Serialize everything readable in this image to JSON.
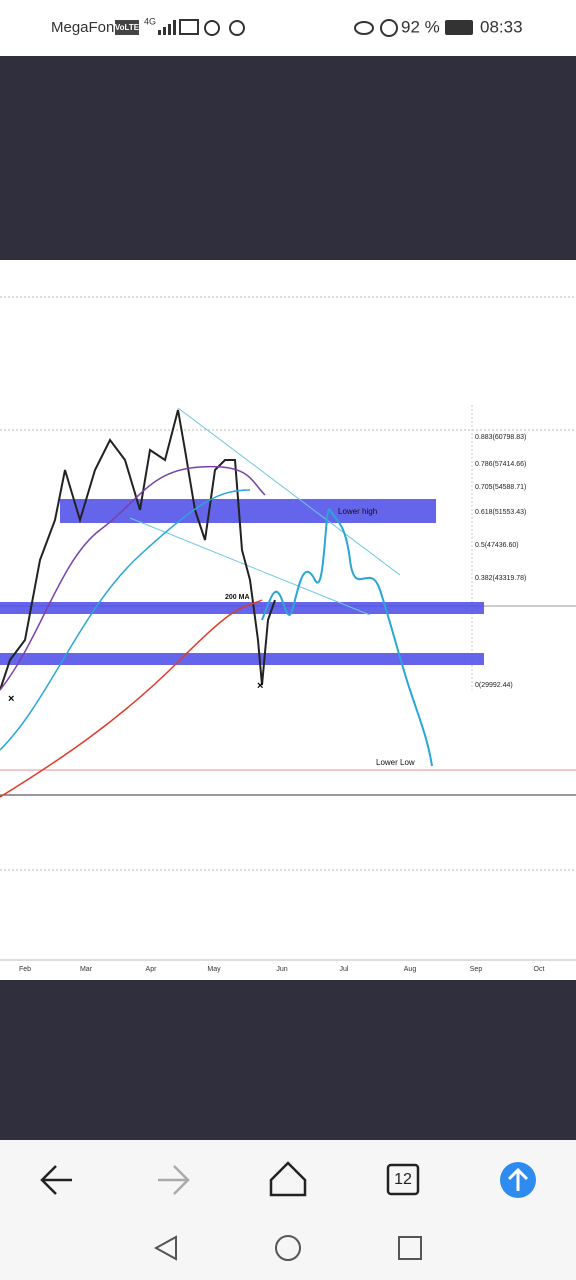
{
  "status_bar": {
    "carrier": "MegaFon",
    "volte": "VoLTE",
    "network": "4G",
    "battery": "92 %",
    "time": "08:33"
  },
  "chart": {
    "annotations": {
      "lower_high": "Lower high",
      "ma200": "200 MA",
      "lower_low": "Lower Low"
    },
    "fib_levels": [
      "0.883(60798.83)",
      "0.786(57414.66)",
      "0.705(54588.71)",
      "0.618(51553.43)",
      "0.5(47436.60)",
      "0.382(43319.78)",
      "0(29992.44)"
    ],
    "months": [
      "Feb",
      "Mar",
      "Apr",
      "May",
      "Jun",
      "Jul",
      "Aug",
      "Sep",
      "Oct"
    ]
  },
  "toolbar": {
    "tab_count": "12"
  }
}
